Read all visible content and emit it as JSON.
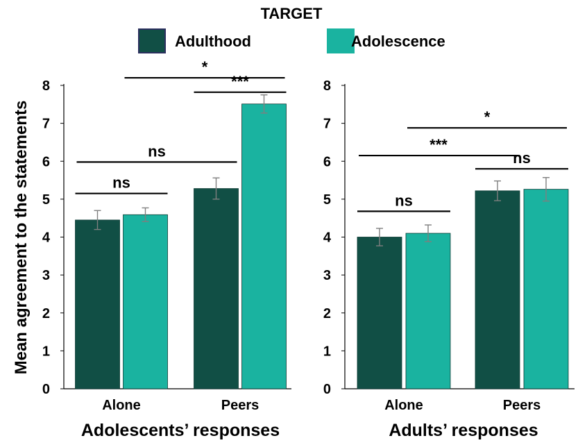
{
  "legend_title": "TARGET",
  "colors": {
    "Adulthood": "#114f45",
    "Adolescence": "#1ab3a0",
    "errorbar": "#7f7f7f",
    "axis": "#000000"
  },
  "chart_data": [
    {
      "type": "bar",
      "title": "",
      "xlabel": "Adolescents’ responses",
      "ylabel": "Mean agreement to the statements",
      "ylim": [
        0,
        8
      ],
      "yticks": [
        "0",
        "1",
        "2",
        "3",
        "4",
        "5",
        "6",
        "7",
        "8"
      ],
      "categories": [
        "Alone",
        "Peers"
      ],
      "series": [
        {
          "name": "Adulthood",
          "values": [
            4.45,
            5.28
          ],
          "errors": [
            0.25,
            0.28
          ]
        },
        {
          "name": "Adolescence",
          "values": [
            4.59,
            7.51
          ],
          "errors": [
            0.18,
            0.24
          ]
        }
      ],
      "annotations": [
        {
          "text": "ns",
          "from": [
            0,
            0
          ],
          "to": [
            0,
            1
          ],
          "y": 5.15
        },
        {
          "text": "ns",
          "from": [
            0,
            0
          ],
          "to": [
            1,
            0
          ],
          "y": 5.98
        },
        {
          "text": "***",
          "from": [
            1,
            0
          ],
          "to": [
            1,
            1
          ],
          "y": 7.82
        },
        {
          "text": "*",
          "from": [
            0,
            1
          ],
          "to": [
            1,
            1
          ],
          "y": 8.2
        }
      ]
    },
    {
      "type": "bar",
      "title": "",
      "xlabel": "Adults’ responses",
      "ylabel": "",
      "ylim": [
        0,
        8
      ],
      "yticks": [
        "0",
        "1",
        "2",
        "3",
        "4",
        "5",
        "6",
        "7",
        "8"
      ],
      "categories": [
        "Alone",
        "Peers"
      ],
      "series": [
        {
          "name": "Adulthood",
          "values": [
            4.0,
            5.22
          ],
          "errors": [
            0.23,
            0.26
          ]
        },
        {
          "name": "Adolescence",
          "values": [
            4.1,
            5.26
          ],
          "errors": [
            0.22,
            0.31
          ]
        }
      ],
      "annotations": [
        {
          "text": "ns",
          "from": [
            0,
            0
          ],
          "to": [
            0,
            1
          ],
          "y": 4.68
        },
        {
          "text": "ns",
          "from": [
            1,
            0
          ],
          "to": [
            1,
            1
          ],
          "y": 5.8
        },
        {
          "text": "***",
          "from": [
            0,
            0
          ],
          "to": [
            1,
            0
          ],
          "y": 6.15
        },
        {
          "text": "*",
          "from": [
            0,
            1
          ],
          "to": [
            1,
            1
          ],
          "y": 6.88
        }
      ]
    }
  ]
}
